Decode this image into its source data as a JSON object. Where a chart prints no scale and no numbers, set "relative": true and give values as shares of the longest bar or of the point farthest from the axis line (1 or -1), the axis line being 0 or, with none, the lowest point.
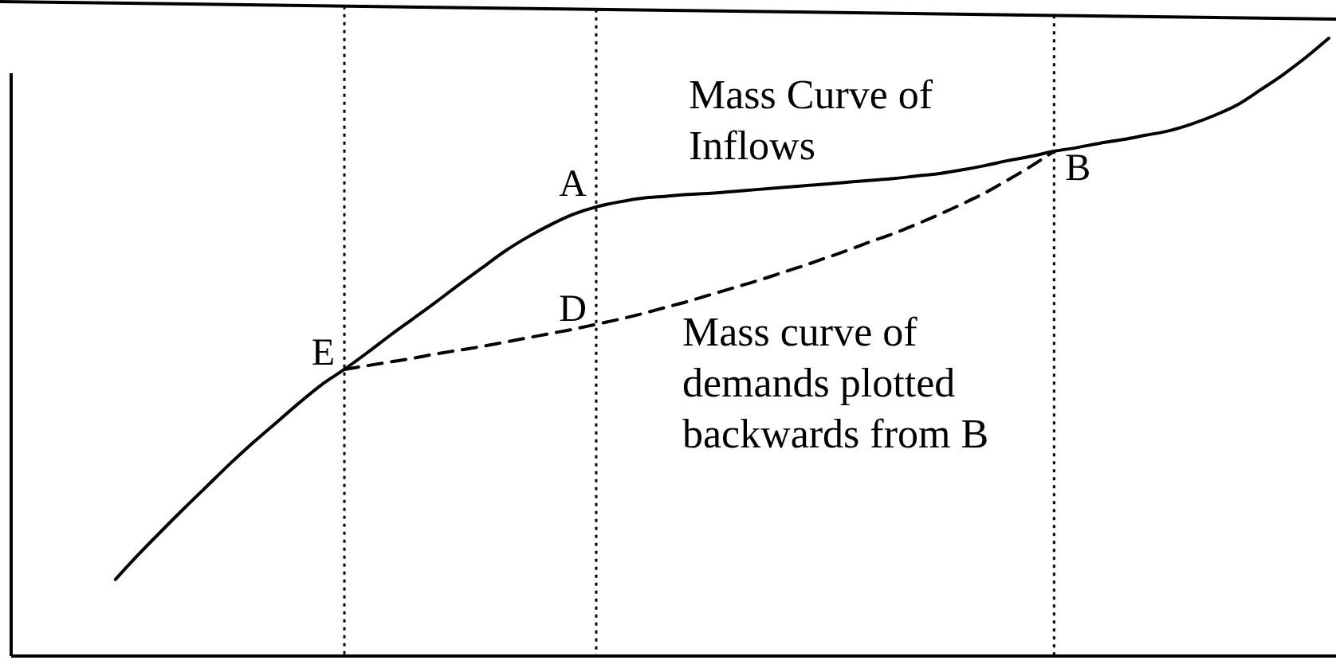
{
  "chart_data": {
    "type": "line",
    "relative": true,
    "grid": "x",
    "categories": [
      null,
      null,
      null,
      null,
      null,
      null,
      null,
      null,
      null,
      null,
      null,
      null,
      null,
      null,
      null,
      null,
      null,
      null,
      null,
      null,
      null,
      null,
      null,
      null,
      null,
      null,
      null,
      null,
      null,
      null,
      null,
      null,
      null,
      null,
      null,
      null,
      null,
      null,
      null,
      null,
      null,
      null,
      null,
      null,
      null,
      null,
      null,
      null,
      null,
      null,
      null,
      null,
      null,
      null
    ],
    "series": [
      {
        "name": "Mass Curve of Inflows",
        "color": "#000000",
        "line_style": "solid",
        "values": [
          0.124,
          0.164,
          0.202,
          0.239,
          0.275,
          0.311,
          0.345,
          0.377,
          0.409,
          0.439,
          0.464,
          0.491,
          0.519,
          0.546,
          0.573,
          0.601,
          0.628,
          0.655,
          0.678,
          0.698,
          0.715,
          0.727,
          0.735,
          0.741,
          0.744,
          0.747,
          0.749,
          0.752,
          0.755,
          0.758,
          0.761,
          0.764,
          0.767,
          0.77,
          0.773,
          0.777,
          0.781,
          0.787,
          0.794,
          0.802,
          0.809,
          0.817,
          0.823,
          0.83,
          0.836,
          0.843,
          0.85,
          0.861,
          0.875,
          0.892,
          0.916,
          0.941,
          0.969,
          1
        ]
      },
      {
        "name": "Mass curve of demands plotted backwards from B",
        "color": "#000000",
        "line_style": "dashed",
        "values": [
          null,
          null,
          null,
          null,
          null,
          null,
          null,
          null,
          null,
          null,
          0.464,
          0.47,
          0.476,
          0.482,
          0.489,
          0.495,
          0.501,
          0.508,
          0.515,
          0.522,
          0.529,
          0.537,
          0.545,
          0.554,
          0.564,
          0.574,
          0.585,
          0.596,
          0.607,
          0.619,
          0.631,
          0.644,
          0.657,
          0.671,
          0.684,
          0.699,
          0.715,
          0.732,
          0.75,
          0.771,
          0.793,
          0.817,
          null,
          null,
          null,
          null,
          null,
          null,
          null,
          null,
          null,
          null,
          null,
          null
        ]
      }
    ],
    "annotations": [
      "E",
      {
        "text": "A",
        "y": 0.727
      },
      {
        "text": "D",
        "y": 0.537
      },
      {
        "text": "B",
        "y": 0.817
      }
    ]
  }
}
